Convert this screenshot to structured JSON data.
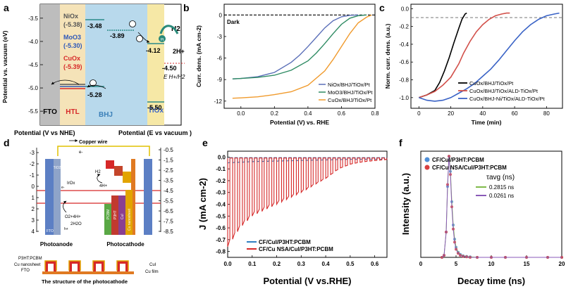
{
  "panel_labels": [
    "a",
    "b",
    "c",
    "d",
    "e",
    "f"
  ],
  "chart_data": [
    {
      "panel": "a",
      "type": "energy-level-diagram",
      "ylabel": "Potential vs. vacuum (eV)",
      "ylim": [
        -5.8,
        -3.2
      ],
      "yticks": [
        "-3.5",
        "-4.0",
        "-4.5",
        "-5.0",
        "-5.5"
      ],
      "layers": [
        "FTO",
        "HTL",
        "BHJ",
        "TiOx"
      ],
      "levels": {
        "htl": [
          {
            "name": "NiOx",
            "value": "(-5.38)"
          },
          {
            "name": "MoO3",
            "value": "(-5.30)"
          },
          {
            "name": "CuOx",
            "value": "(-5.39)"
          }
        ],
        "bhj_lumo": "-3.48",
        "bhj_homo": "-5.28",
        "bhj_lumo2": "-3.89",
        "tiox_cb": "-4.12",
        "tiox_vb": "-5.50",
        "h_level": "-4.50",
        "h_label": "E H+/H2",
        "h2_label": "H2",
        "proton_label": "2H+",
        "pt_label": "Pt"
      }
    },
    {
      "panel": "b",
      "type": "line",
      "xlabel": "Potential (V) vs. RHE",
      "ylabel": "Curr. dens. (mA cm-2)",
      "xlim": [
        -0.1,
        0.8
      ],
      "ylim": [
        -13,
        1.5
      ],
      "xticks": [
        "0.0",
        "0.2",
        "0.4",
        "0.6",
        "0.8"
      ],
      "yticks": [
        "0",
        "-3",
        "-6",
        "-9",
        "-12"
      ],
      "annotation": "Dark",
      "series": [
        {
          "name": "NiOx/BHJ/TiOx/Pt",
          "color": "#5b6fb8",
          "x": [
            -0.05,
            0,
            0.1,
            0.2,
            0.3,
            0.35,
            0.4,
            0.45,
            0.5,
            0.55,
            0.6,
            0.65,
            0.7
          ],
          "y": [
            -8.9,
            -8.85,
            -8.6,
            -8.0,
            -6.6,
            -5.6,
            -4.4,
            -3.1,
            -1.8,
            -0.8,
            -0.25,
            -0.05,
            0
          ]
        },
        {
          "name": "MoO3/BHJ/TiOx/Pt",
          "color": "#2e8b63",
          "x": [
            -0.05,
            0,
            0.1,
            0.2,
            0.3,
            0.4,
            0.45,
            0.5,
            0.55,
            0.6,
            0.65,
            0.7,
            0.75
          ],
          "y": [
            -8.9,
            -8.85,
            -8.7,
            -8.4,
            -7.7,
            -6.4,
            -5.3,
            -4.0,
            -2.6,
            -1.3,
            -0.45,
            -0.1,
            0
          ]
        },
        {
          "name": "CuOx/BHJ/TiOx/Pt",
          "color": "#f09a2c",
          "x": [
            -0.05,
            0,
            0.1,
            0.2,
            0.3,
            0.4,
            0.5,
            0.55,
            0.6,
            0.65,
            0.7,
            0.75,
            0.78
          ],
          "y": [
            -11.6,
            -11.55,
            -11.4,
            -11.1,
            -10.7,
            -9.8,
            -7.8,
            -6.2,
            -4.4,
            -2.6,
            -1.1,
            -0.3,
            0
          ]
        }
      ]
    },
    {
      "panel": "c",
      "type": "line",
      "xlabel": "Time (min)",
      "ylabel": "Norm. curr. dens. (a.u.)",
      "xlim": [
        -5,
        90
      ],
      "ylim": [
        -1.12,
        0.05
      ],
      "xticks": [
        "0",
        "20",
        "40",
        "60",
        "80"
      ],
      "yticks": [
        "0.0",
        "-0.2",
        "-0.4",
        "-0.6",
        "-0.8",
        "-1.0"
      ],
      "reference_line": -0.1,
      "series": [
        {
          "name": "CuOx/BHJ/TiOx/Pt",
          "color": "#000000",
          "x": [
            0,
            5,
            10,
            13,
            16,
            19,
            22,
            25,
            27,
            29,
            30
          ],
          "y": [
            -1.0,
            -0.97,
            -0.92,
            -0.83,
            -0.7,
            -0.55,
            -0.38,
            -0.22,
            -0.12,
            -0.06,
            -0.05
          ]
        },
        {
          "name": "CuOx/BHJ/TiOx/ALD-TiOx/Pt",
          "color": "#d2504a",
          "x": [
            0,
            5,
            10,
            15,
            20,
            25,
            28,
            32,
            36,
            40,
            44,
            48,
            52,
            55,
            57
          ],
          "y": [
            -1.0,
            -0.97,
            -0.93,
            -0.86,
            -0.77,
            -0.62,
            -0.5,
            -0.37,
            -0.26,
            -0.18,
            -0.12,
            -0.08,
            -0.06,
            -0.05,
            -0.05
          ]
        },
        {
          "name": "CuOx/BHJ-Ni/TiOx/ALD-TiOx/Pt",
          "color": "#3a63c6",
          "x": [
            0,
            5,
            10,
            15,
            20,
            25,
            30,
            35,
            40,
            45,
            50,
            55,
            60,
            65,
            70,
            75,
            80,
            85,
            88
          ],
          "y": [
            -1.0,
            -1.03,
            -1.04,
            -1.03,
            -1.0,
            -0.95,
            -0.9,
            -0.84,
            -0.76,
            -0.68,
            -0.58,
            -0.47,
            -0.36,
            -0.26,
            -0.18,
            -0.12,
            -0.08,
            -0.06,
            -0.05
          ]
        }
      ]
    },
    {
      "panel": "d",
      "type": "schematic",
      "left_axis_title": "Potential (V vs NHE)",
      "right_axis_title": "Potential (E vs vacuum )",
      "left_ticks": [
        "-3",
        "-2",
        "-1",
        "0",
        "1",
        "2",
        "3",
        "4"
      ],
      "right_ticks": [
        "-0.5",
        "-1.5",
        "-2.5",
        "-3.5",
        "-4.5",
        "-5.5",
        "-6.5",
        "-7.5",
        "-8.5"
      ],
      "labels": {
        "wire": "Copper wire",
        "electron": "e-",
        "tio2": "TiO2",
        "irox": "IrOx",
        "h2": "H2",
        "four_h": "4H+",
        "o2": "O2+4H+",
        "h2o": "2H2O",
        "hole": "h+",
        "fto": "FTO",
        "pcbm": "PCBM",
        "p3ht": "P3HT",
        "cui": "CuI",
        "cu_ns": "Cu nanosheet",
        "photoanode": "Photoanode",
        "photocathode": "Photocathode",
        "struct_p3ht": "P3HT:PCBM",
        "struct_cuns": "Cu nanosheet",
        "struct_fto": "FTO",
        "struct_cui": "CuI",
        "struct_cufilm": "Cu film",
        "structure_title": "The structure of the photocathode"
      }
    },
    {
      "panel": "e",
      "type": "line",
      "xlabel": "Potential (V vs.RHE)",
      "ylabel": "J (mA cm-2)",
      "xlim": [
        0,
        0.65
      ],
      "ylim": [
        -0.85,
        0.05
      ],
      "xticks": [
        "0.0",
        "0.1",
        "0.2",
        "0.3",
        "0.4",
        "0.5",
        "0.6"
      ],
      "yticks": [
        "0.0",
        "-0.1",
        "-0.2",
        "-0.3",
        "-0.4",
        "-0.5",
        "-0.6",
        "-0.7",
        "-0.8"
      ],
      "chopped_light": true,
      "series": [
        {
          "name": "CF/CuI/P3HT:PCBM",
          "color": "#2f7fc1",
          "envelope_x": [
            0,
            0.1,
            0.2,
            0.3,
            0.4,
            0.5,
            0.6,
            0.65
          ],
          "envelope_y": [
            -0.05,
            -0.04,
            -0.035,
            -0.03,
            -0.025,
            -0.02,
            -0.02,
            -0.02
          ]
        },
        {
          "name": "CF/Cu NSA/CuI/P3HT:PCBM",
          "color": "#d62828",
          "envelope_x": [
            0,
            0.05,
            0.1,
            0.2,
            0.3,
            0.4,
            0.45,
            0.5,
            0.55,
            0.6,
            0.65
          ],
          "envelope_y": [
            -0.76,
            -0.6,
            -0.5,
            -0.4,
            -0.3,
            -0.18,
            -0.1,
            -0.06,
            -0.04,
            -0.03,
            -0.02
          ]
        }
      ]
    },
    {
      "panel": "f",
      "type": "scatter+line",
      "xlabel": "Decay time (ns)",
      "ylabel": "Intensity (a.u.)",
      "xlim": [
        0,
        20
      ],
      "ylim": [
        0,
        1.05
      ],
      "xticks": [
        "0",
        "5",
        "10",
        "15",
        "20"
      ],
      "legend_title": "τavg (ns)",
      "series": [
        {
          "name": "CF/CuI/P3HT:PCBM",
          "color": "#4f8fd8",
          "fit_color": "#7fba4a",
          "tau": "0.2815 ns",
          "x": [
            3.0,
            3.3,
            3.6,
            3.8,
            4.0,
            4.2,
            4.4,
            4.6,
            4.8,
            5.0,
            5.3,
            5.6,
            6.0,
            6.5,
            7,
            8,
            10,
            12,
            15,
            18,
            20
          ],
          "y": [
            0,
            0.02,
            0.25,
            0.7,
            1.0,
            0.85,
            0.55,
            0.32,
            0.18,
            0.1,
            0.05,
            0.03,
            0.015,
            0.01,
            0.005,
            0,
            0,
            0,
            0,
            0,
            0
          ]
        },
        {
          "name": "CF/Cu NSA/CuI/P3HT:PCBM",
          "color": "#d94040",
          "fit_color": "#8a5ab8",
          "tau": "0.0261 ns",
          "x": [
            3.0,
            3.3,
            3.6,
            3.8,
            4.0,
            4.2,
            4.4,
            4.6,
            4.8,
            5.0,
            5.3,
            5.6,
            6.0,
            6.5,
            7,
            8,
            10,
            12,
            15,
            18,
            20
          ],
          "y": [
            0,
            0.02,
            0.25,
            0.72,
            1.0,
            0.82,
            0.5,
            0.28,
            0.15,
            0.08,
            0.04,
            0.02,
            0.01,
            0.005,
            0,
            0,
            0,
            0,
            0,
            0,
            0
          ]
        }
      ]
    }
  ]
}
